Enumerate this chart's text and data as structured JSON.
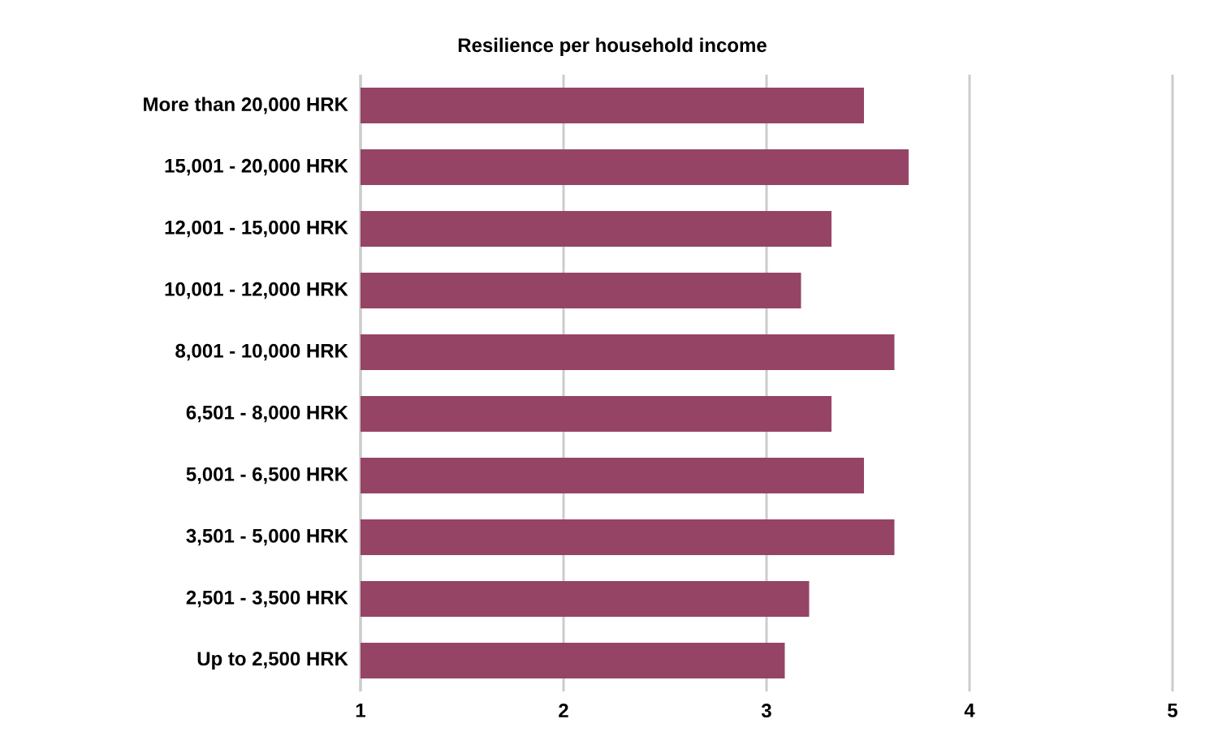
{
  "chart_data": {
    "type": "bar",
    "orientation": "horizontal",
    "title": "Resilience per household income",
    "categories": [
      "More than 20,000 HRK",
      "15,001 - 20,000 HRK",
      "12,001 - 15,000 HRK",
      "10,001 - 12,000 HRK",
      "8,001 - 10,000 HRK",
      "6,501 - 8,000 HRK",
      "5,001 - 6,500 HRK",
      "3,501 - 5,000 HRK",
      "2,501 - 3,500 HRK",
      "Up to 2,500 HRK"
    ],
    "values": [
      3.48,
      3.7,
      3.32,
      3.17,
      3.63,
      3.32,
      3.48,
      3.63,
      3.21,
      3.09
    ],
    "color": "#954466",
    "xlim": [
      1,
      5
    ],
    "xticks": [
      1,
      2,
      3,
      4,
      5
    ],
    "grid": "x"
  }
}
